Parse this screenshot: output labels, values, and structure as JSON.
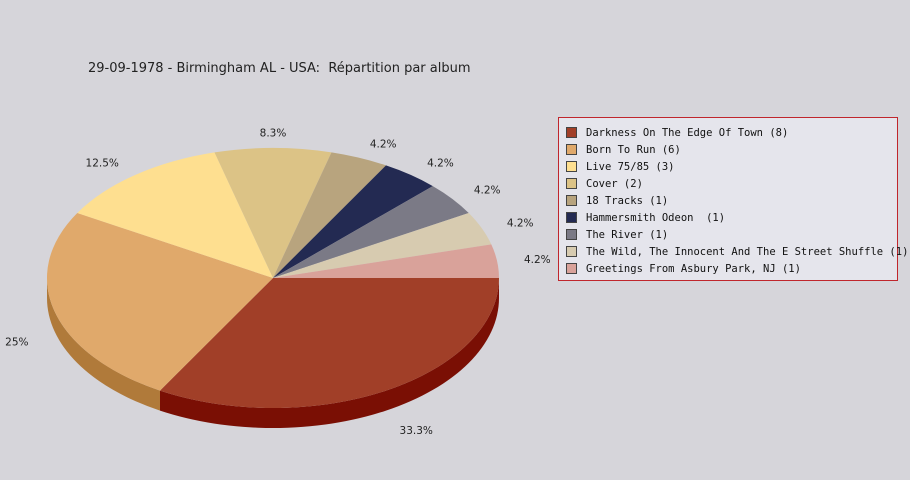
{
  "chart_data": {
    "type": "pie",
    "title": "29-09-1978 - Birmingham AL - USA:  Répartition par album",
    "legend_position": "right",
    "slices": [
      {
        "label": "Darkness On The Edge Of Town (8)",
        "value": 8,
        "percent_label": "33.3%",
        "color": "#a13f28",
        "side_color": "#7a0f04"
      },
      {
        "label": "Born To Run (6)",
        "value": 6,
        "percent_label": "25%",
        "color": "#e0a96b",
        "side_color": "#b07a3a"
      },
      {
        "label": "Live 75/85 (3)",
        "value": 3,
        "percent_label": "12.5%",
        "color": "#fedf90",
        "side_color": "#c9a85a"
      },
      {
        "label": "Cover (2)",
        "value": 2,
        "percent_label": "8.3%",
        "color": "#dcc386",
        "side_color": "#a58d52"
      },
      {
        "label": "18 Tracks (1)",
        "value": 1,
        "percent_label": "4.2%",
        "color": "#b8a47e",
        "side_color": "#8a7750"
      },
      {
        "label": "Hammersmith Odeon  (1)",
        "value": 1,
        "percent_label": "4.2%",
        "color": "#232a52",
        "side_color": "#101535"
      },
      {
        "label": "The River (1)",
        "value": 1,
        "percent_label": "4.2%",
        "color": "#7b7a86",
        "side_color": "#55545e"
      },
      {
        "label": "The Wild, The Innocent And The E Street Shuffle (1)",
        "value": 1,
        "percent_label": "4.2%",
        "color": "#d7cbb0",
        "side_color": "#a89d84"
      },
      {
        "label": "Greetings From Asbury Park, NJ (1)",
        "value": 1,
        "percent_label": "4.2%",
        "color": "#d9a29a",
        "side_color": "#a8716a"
      }
    ]
  }
}
